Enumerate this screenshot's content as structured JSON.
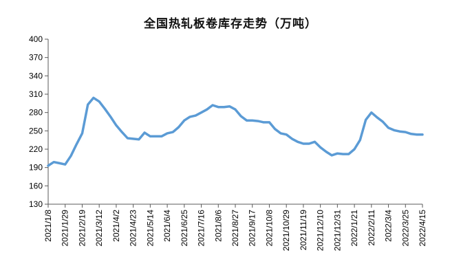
{
  "chart_data": {
    "type": "line",
    "title": "全国热轧板卷库存走势（万吨）",
    "xlabel": "",
    "ylabel": "",
    "ylim": [
      130,
      400
    ],
    "yticks": [
      130,
      160,
      190,
      220,
      250,
      280,
      310,
      340,
      370,
      400
    ],
    "grid": false,
    "legend": "none",
    "x_tick_labels": [
      "2021/1/8",
      "2021/1/29",
      "2021/2/19",
      "2021/3/12",
      "2021/4/2",
      "2021/4/23",
      "2021/5/14",
      "2021/6/4",
      "2021/6/25",
      "2021/7/16",
      "2021/8/6",
      "2021/8/27",
      "2021/9/17",
      "2021/10/8",
      "2021/10/29",
      "2021/11/19",
      "2021/12/10",
      "2021/12/31",
      "2022/1/21",
      "2022/2/11",
      "2022/3/4",
      "2022/3/25",
      "2022/4/15"
    ],
    "series": [
      {
        "color": "#5b9bd5",
        "x": [
          "2021/1/8",
          "2021/1/15",
          "2021/1/22",
          "2021/1/29",
          "2021/2/5",
          "2021/2/12",
          "2021/2/19",
          "2021/2/26",
          "2021/3/5",
          "2021/3/12",
          "2021/3/19",
          "2021/3/26",
          "2021/4/2",
          "2021/4/9",
          "2021/4/16",
          "2021/4/23",
          "2021/4/30",
          "2021/5/7",
          "2021/5/14",
          "2021/5/21",
          "2021/5/28",
          "2021/6/4",
          "2021/6/11",
          "2021/6/18",
          "2021/6/25",
          "2021/7/2",
          "2021/7/9",
          "2021/7/16",
          "2021/7/23",
          "2021/7/30",
          "2021/8/6",
          "2021/8/13",
          "2021/8/20",
          "2021/8/27",
          "2021/9/3",
          "2021/9/10",
          "2021/9/17",
          "2021/9/24",
          "2021/10/1",
          "2021/10/8",
          "2021/10/15",
          "2021/10/22",
          "2021/10/29",
          "2021/11/5",
          "2021/11/12",
          "2021/11/19",
          "2021/11/26",
          "2021/12/3",
          "2021/12/10",
          "2021/12/17",
          "2021/12/24",
          "2021/12/31",
          "2022/1/7",
          "2022/1/14",
          "2022/1/21",
          "2022/1/28",
          "2022/2/4",
          "2022/2/11",
          "2022/2/18",
          "2022/2/25",
          "2022/3/4",
          "2022/3/11",
          "2022/3/18",
          "2022/3/25",
          "2022/4/1",
          "2022/4/8",
          "2022/4/15"
        ],
        "values": [
          193,
          199,
          197,
          195,
          209,
          228,
          246,
          293,
          304,
          298,
          286,
          273,
          259,
          248,
          238,
          237,
          236,
          247,
          241,
          241,
          241,
          246,
          248,
          256,
          267,
          273,
          275,
          280,
          285,
          292,
          289,
          289,
          290,
          285,
          274,
          267,
          267,
          266,
          264,
          264,
          253,
          246,
          244,
          237,
          232,
          229,
          229,
          232,
          223,
          216,
          210,
          213,
          212,
          212,
          220,
          235,
          268,
          280,
          272,
          265,
          255,
          251,
          249,
          248,
          245,
          244,
          244
        ]
      }
    ]
  }
}
